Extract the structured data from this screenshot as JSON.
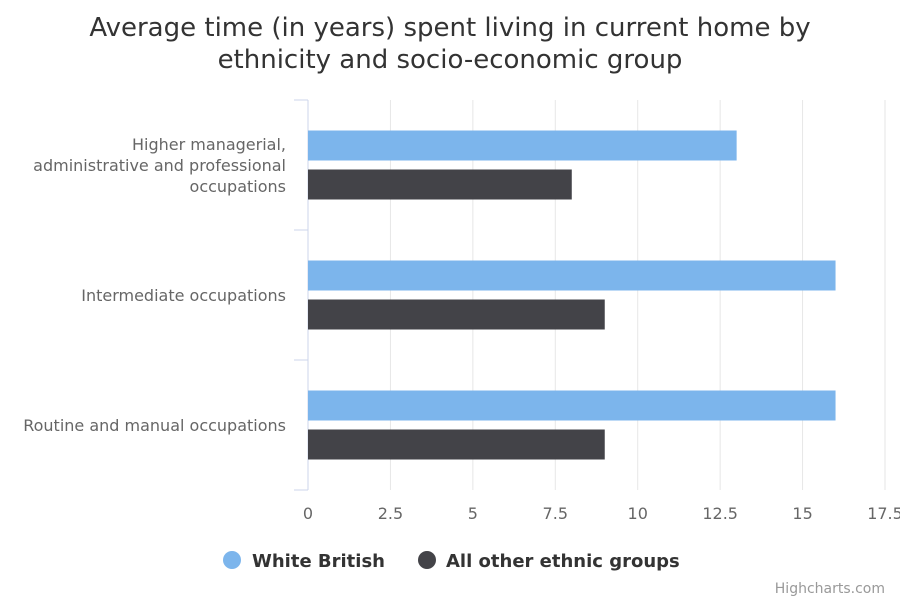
{
  "chart_data": {
    "type": "bar",
    "orientation": "horizontal",
    "title": "Average time (in years) spent living in current home by ethnicity and socio-economic group",
    "title_lines": [
      "Average time (in years) spent living in current home by",
      "ethnicity and socio-economic group"
    ],
    "categories": [
      [
        "Higher managerial,",
        "administrative and professional",
        "occupations"
      ],
      [
        "Intermediate occupations"
      ],
      [
        "Routine and manual occupations"
      ]
    ],
    "series": [
      {
        "name": "White British",
        "color": "#7cb5ec",
        "values": [
          13,
          16,
          16
        ]
      },
      {
        "name": "All other ethnic groups",
        "color": "#434348",
        "values": [
          8,
          9,
          9
        ]
      }
    ],
    "xlim": [
      0,
      17.5
    ],
    "ticks": [
      "0",
      "2.5",
      "5",
      "7.5",
      "10",
      "12.5",
      "15",
      "17.5"
    ],
    "grid": true,
    "legend_position": "bottom-center"
  },
  "credit": "Highcharts.com"
}
